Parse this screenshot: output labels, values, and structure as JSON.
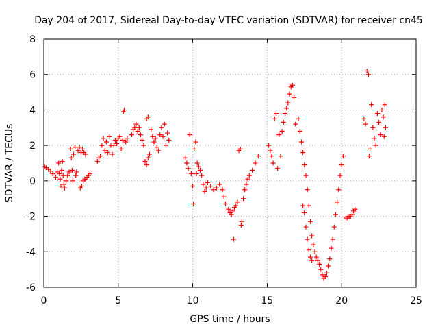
{
  "chart_data": {
    "type": "scatter",
    "title": "Day 204 of 2017, Sidereal Day-to-day VTEC variation (SDTVAR) for receiver cn45",
    "xlabel": "GPS time / hours",
    "ylabel": "SDTVAR / TECUs",
    "xlim": [
      0,
      25
    ],
    "ylim": [
      -6,
      8
    ],
    "xticks": [
      "0",
      "5",
      "10",
      "15",
      "20",
      "25"
    ],
    "yticks": [
      "-6",
      "-4",
      "-2",
      "0",
      "2",
      "4",
      "6",
      "8"
    ],
    "grid": true,
    "marker": "plus",
    "color": "#ff0000",
    "series": [
      {
        "points": [
          [
            0.05,
            0.8
          ],
          [
            0.15,
            0.75
          ],
          [
            0.3,
            0.65
          ],
          [
            0.45,
            0.55
          ],
          [
            0.6,
            0.4
          ],
          [
            0.8,
            0.2
          ],
          [
            0.9,
            0.5
          ],
          [
            1.0,
            1.0
          ],
          [
            1.05,
            0.4
          ],
          [
            1.1,
            0.1
          ],
          [
            1.15,
            -0.3
          ],
          [
            1.2,
            0.6
          ],
          [
            1.25,
            1.1
          ],
          [
            1.3,
            0.3
          ],
          [
            1.35,
            -0.2
          ],
          [
            1.4,
            -0.4
          ],
          [
            1.5,
            0.0
          ],
          [
            1.6,
            0.3
          ],
          [
            1.7,
            0.5
          ],
          [
            1.8,
            1.8
          ],
          [
            1.85,
            1.3
          ],
          [
            1.9,
            0.6
          ],
          [
            1.95,
            0.0
          ],
          [
            2.0,
            1.5
          ],
          [
            2.1,
            1.9
          ],
          [
            2.15,
            0.3
          ],
          [
            2.2,
            0.5
          ],
          [
            2.3,
            1.7
          ],
          [
            2.4,
            1.9
          ],
          [
            2.5,
            1.6
          ],
          [
            2.45,
            -0.4
          ],
          [
            2.55,
            -0.3
          ],
          [
            2.6,
            1.8
          ],
          [
            2.65,
            0.0
          ],
          [
            2.7,
            1.6
          ],
          [
            2.75,
            0.1
          ],
          [
            2.8,
            1.5
          ],
          [
            2.9,
            0.2
          ],
          [
            3.0,
            0.3
          ],
          [
            3.1,
            0.4
          ],
          [
            3.6,
            1.1
          ],
          [
            3.7,
            1.3
          ],
          [
            3.8,
            1.4
          ],
          [
            3.9,
            2.0
          ],
          [
            4.0,
            2.4
          ],
          [
            4.1,
            1.7
          ],
          [
            4.2,
            2.2
          ],
          [
            4.3,
            1.6
          ],
          [
            4.4,
            2.5
          ],
          [
            4.5,
            2.0
          ],
          [
            4.6,
            1.5
          ],
          [
            4.7,
            2.0
          ],
          [
            4.8,
            2.3
          ],
          [
            4.9,
            2.1
          ],
          [
            5.0,
            2.4
          ],
          [
            5.1,
            2.5
          ],
          [
            5.2,
            1.8
          ],
          [
            5.3,
            2.3
          ],
          [
            5.35,
            3.9
          ],
          [
            5.4,
            4.0
          ],
          [
            5.5,
            2.2
          ],
          [
            5.6,
            2.4
          ],
          [
            5.9,
            2.6
          ],
          [
            6.0,
            2.9
          ],
          [
            6.1,
            3.0
          ],
          [
            6.2,
            3.2
          ],
          [
            6.3,
            2.8
          ],
          [
            6.4,
            3.0
          ],
          [
            6.5,
            2.6
          ],
          [
            6.6,
            2.3
          ],
          [
            6.7,
            2.0
          ],
          [
            6.8,
            1.1
          ],
          [
            6.9,
            0.9
          ],
          [
            7.0,
            1.3
          ],
          [
            7.1,
            1.5
          ],
          [
            6.9,
            3.5
          ],
          [
            7.0,
            3.6
          ],
          [
            7.2,
            2.9
          ],
          [
            7.3,
            2.5
          ],
          [
            7.4,
            2.2
          ],
          [
            7.5,
            2.4
          ],
          [
            7.6,
            1.9
          ],
          [
            7.7,
            1.7
          ],
          [
            7.8,
            2.6
          ],
          [
            7.9,
            3.0
          ],
          [
            8.0,
            2.5
          ],
          [
            8.1,
            3.2
          ],
          [
            8.2,
            2.0
          ],
          [
            8.3,
            2.7
          ],
          [
            8.4,
            2.3
          ],
          [
            9.5,
            1.3
          ],
          [
            9.6,
            1.0
          ],
          [
            9.7,
            0.7
          ],
          [
            9.8,
            2.6
          ],
          [
            9.9,
            0.4
          ],
          [
            10.0,
            -0.3
          ],
          [
            10.05,
            -1.3
          ],
          [
            10.1,
            1.8
          ],
          [
            10.2,
            2.2
          ],
          [
            10.25,
            0.4
          ],
          [
            10.3,
            1.0
          ],
          [
            10.4,
            0.8
          ],
          [
            10.5,
            0.6
          ],
          [
            10.6,
            0.3
          ],
          [
            10.7,
            -0.2
          ],
          [
            10.8,
            -0.6
          ],
          [
            10.9,
            -0.4
          ],
          [
            11.0,
            -0.1
          ],
          [
            11.2,
            -0.3
          ],
          [
            11.4,
            -0.5
          ],
          [
            11.6,
            -0.4
          ],
          [
            11.8,
            -0.2
          ],
          [
            12.0,
            -0.5
          ],
          [
            12.1,
            -0.9
          ],
          [
            12.2,
            -1.3
          ],
          [
            12.4,
            -1.6
          ],
          [
            12.5,
            -1.8
          ],
          [
            12.6,
            -1.9
          ],
          [
            12.7,
            -1.7
          ],
          [
            12.75,
            -3.3
          ],
          [
            12.8,
            -1.5
          ],
          [
            12.9,
            -1.4
          ],
          [
            13.0,
            -1.2
          ],
          [
            13.1,
            1.7
          ],
          [
            13.2,
            1.8
          ],
          [
            13.25,
            -2.5
          ],
          [
            13.3,
            -2.3
          ],
          [
            13.4,
            -1.0
          ],
          [
            13.5,
            -0.5
          ],
          [
            13.6,
            -0.2
          ],
          [
            13.7,
            0.1
          ],
          [
            13.8,
            0.3
          ],
          [
            14.0,
            0.6
          ],
          [
            14.2,
            1.0
          ],
          [
            14.4,
            1.4
          ],
          [
            15.1,
            2.0
          ],
          [
            15.2,
            1.7
          ],
          [
            15.3,
            1.4
          ],
          [
            15.4,
            1.0
          ],
          [
            15.5,
            3.5
          ],
          [
            15.6,
            3.8
          ],
          [
            15.7,
            0.7
          ],
          [
            15.8,
            2.6
          ],
          [
            15.9,
            1.4
          ],
          [
            16.0,
            2.8
          ],
          [
            16.1,
            3.3
          ],
          [
            16.2,
            3.8
          ],
          [
            16.3,
            4.1
          ],
          [
            16.4,
            4.4
          ],
          [
            16.5,
            4.9
          ],
          [
            16.6,
            5.3
          ],
          [
            16.7,
            5.4
          ],
          [
            16.8,
            4.7
          ],
          [
            16.9,
            3.2
          ],
          [
            17.1,
            3.5
          ],
          [
            17.2,
            2.8
          ],
          [
            17.3,
            2.2
          ],
          [
            17.4,
            1.6
          ],
          [
            17.5,
            0.9
          ],
          [
            17.6,
            0.3
          ],
          [
            17.7,
            -0.5
          ],
          [
            17.8,
            -1.4
          ],
          [
            17.9,
            -2.3
          ],
          [
            18.0,
            -3.1
          ],
          [
            18.1,
            -3.6
          ],
          [
            18.2,
            -4.0
          ],
          [
            18.3,
            -4.3
          ],
          [
            18.4,
            -4.5
          ],
          [
            18.5,
            -4.7
          ],
          [
            18.6,
            -5.0
          ],
          [
            18.7,
            -5.3
          ],
          [
            18.8,
            -5.5
          ],
          [
            18.9,
            -5.4
          ],
          [
            19.0,
            -5.2
          ],
          [
            19.1,
            -4.8
          ],
          [
            19.2,
            -4.4
          ],
          [
            19.3,
            -3.8
          ],
          [
            19.4,
            -3.3
          ],
          [
            19.5,
            -2.6
          ],
          [
            19.6,
            -1.9
          ],
          [
            19.7,
            -1.2
          ],
          [
            19.8,
            -0.5
          ],
          [
            19.9,
            0.3
          ],
          [
            20.0,
            0.9
          ],
          [
            20.1,
            1.4
          ],
          [
            17.4,
            -1.4
          ],
          [
            17.5,
            -1.8
          ],
          [
            17.6,
            -2.6
          ],
          [
            17.7,
            -3.3
          ],
          [
            17.8,
            -3.9
          ],
          [
            17.9,
            -4.3
          ],
          [
            18.0,
            -4.5
          ],
          [
            20.3,
            -2.1
          ],
          [
            20.4,
            -2.1
          ],
          [
            20.5,
            -2.0
          ],
          [
            20.6,
            -2.0
          ],
          [
            20.7,
            -1.9
          ],
          [
            20.8,
            -1.7
          ],
          [
            20.9,
            -1.6
          ],
          [
            21.5,
            3.5
          ],
          [
            21.6,
            3.2
          ],
          [
            21.7,
            6.2
          ],
          [
            21.8,
            6.0
          ],
          [
            21.85,
            1.4
          ],
          [
            21.9,
            1.8
          ],
          [
            22.0,
            4.3
          ],
          [
            22.1,
            3.0
          ],
          [
            22.2,
            2.4
          ],
          [
            22.3,
            2.0
          ],
          [
            22.4,
            3.8
          ],
          [
            22.5,
            3.3
          ],
          [
            22.6,
            2.6
          ],
          [
            22.7,
            4.0
          ],
          [
            22.8,
            3.6
          ],
          [
            22.85,
            2.5
          ],
          [
            22.9,
            4.3
          ],
          [
            22.95,
            3.0
          ]
        ]
      }
    ]
  }
}
